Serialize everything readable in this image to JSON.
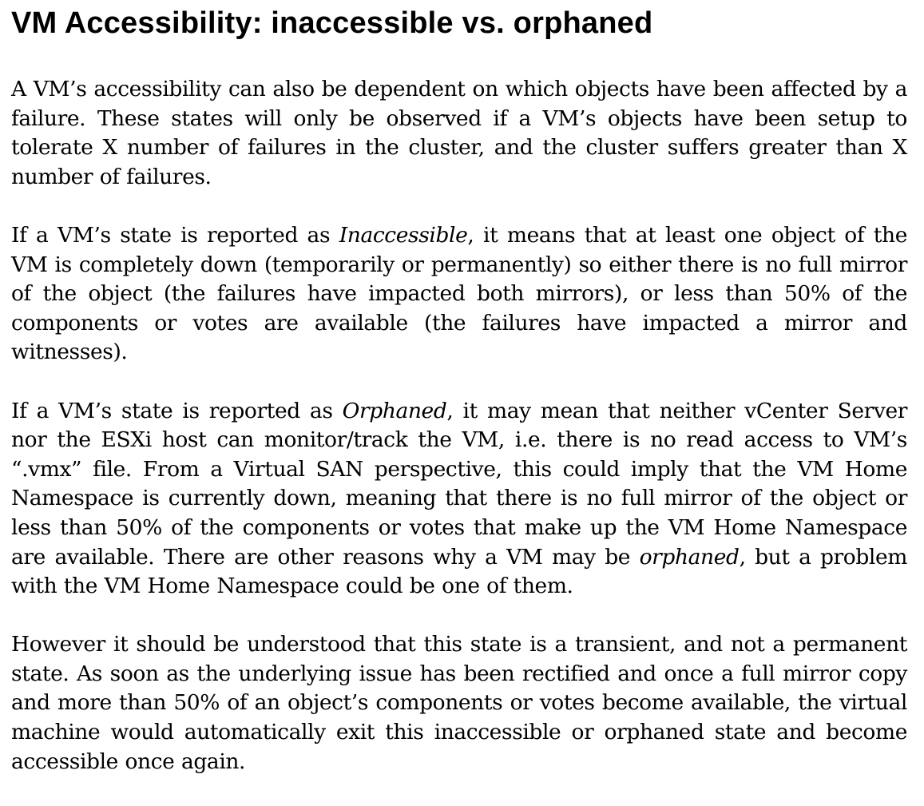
{
  "title": "VM Accessibility: inaccessible vs. orphaned",
  "paragraphs": {
    "p1": "A VM’s accessibility can also be dependent on which objects have been affected by a failure. These states will only be observed if a VM’s objects have been setup to tolerate X number of failures in the cluster, and the cluster suffers greater than X number of failures.",
    "p2_before": "If a VM’s state is reported as ",
    "p2_em": "Inaccessible",
    "p2_after": ", it means that at least one object of the VM is completely down (temporarily or permanently) so either there is no full mirror of the object (the failures have impacted both mirrors), or less than 50% of the components or votes are available (the failures have impacted a mirror and witnesses).",
    "p3_before": "If a VM’s state is reported as ",
    "p3_em": "Orphaned",
    "p3_middle": ", it may mean that neither vCenter Server nor the ESXi host can monitor/track the VM, i.e. there is no read access to VM’s “.vmx” file. From a Virtual SAN perspective, this could imply that the VM Home Namespace is currently down, meaning that there is no full mirror of the object or less than 50% of the components or votes that make up the VM Home Namespace are available. There are other reasons why a VM may be ",
    "p3_em2": "orphaned",
    "p3_after": ", but a problem with the VM Home Namespace could be one of them.",
    "p4": "However it should be understood that this state is a transient, and not a permanent state. As soon as the underlying issue has been rectified and once a full mirror copy and more than 50% of an object’s components or votes become available, the virtual machine would automatically exit this inaccessible or orphaned state and become accessible once again."
  }
}
